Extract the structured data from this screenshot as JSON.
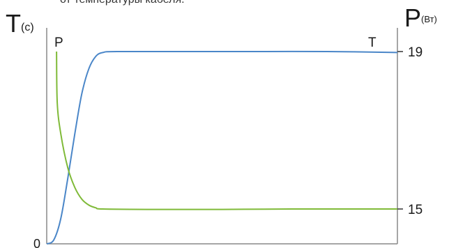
{
  "caption": "от температуры кабеля.",
  "chart_data": {
    "type": "line",
    "left_axis": {
      "title_main": "T",
      "title_unit": "(c)",
      "origin_label": "0"
    },
    "right_axis": {
      "title_main": "P",
      "title_unit": "(Вт)",
      "ticks": [
        19,
        15
      ],
      "ylim": [
        15,
        19
      ]
    },
    "series": [
      {
        "name": "T",
        "color": "#4a86c8",
        "axis": "left",
        "values_fraction": [
          [
            0.0,
            0.0
          ],
          [
            0.02,
            0.02
          ],
          [
            0.04,
            0.13
          ],
          [
            0.06,
            0.34
          ],
          [
            0.08,
            0.57
          ],
          [
            0.1,
            0.78
          ],
          [
            0.12,
            0.91
          ],
          [
            0.14,
            0.975
          ],
          [
            0.16,
            0.995
          ],
          [
            0.2,
            1.0
          ],
          [
            0.4,
            1.0
          ],
          [
            0.6,
            1.0
          ],
          [
            0.8,
            1.0
          ],
          [
            1.0,
            0.995
          ]
        ]
      },
      {
        "name": "P",
        "color": "#7fba38",
        "axis": "right",
        "values": [
          [
            0.028,
            19.0
          ],
          [
            0.03,
            17.7
          ],
          [
            0.04,
            16.92
          ],
          [
            0.06,
            16.05
          ],
          [
            0.08,
            15.55
          ],
          [
            0.1,
            15.25
          ],
          [
            0.12,
            15.1
          ],
          [
            0.14,
            15.03
          ],
          [
            0.16,
            15.0
          ],
          [
            0.3,
            14.99
          ],
          [
            0.5,
            14.99
          ],
          [
            0.7,
            15.0
          ],
          [
            1.0,
            15.0
          ]
        ]
      }
    ]
  }
}
